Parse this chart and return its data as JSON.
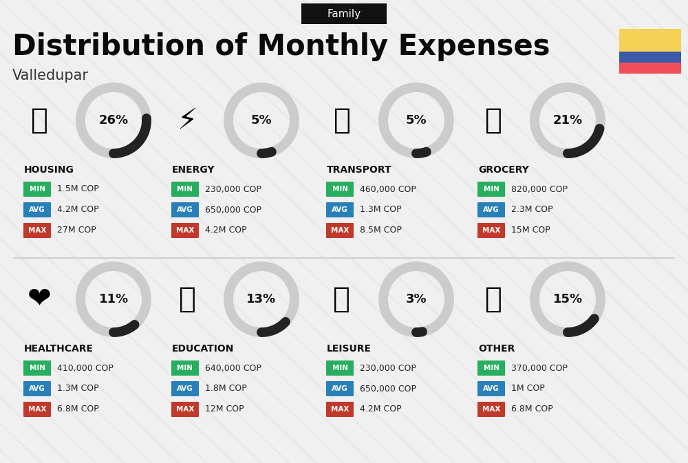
{
  "title": "Distribution of Monthly Expenses",
  "subtitle": "Valledupar",
  "tag": "Family",
  "background_color": "#f0f0f0",
  "categories": [
    {
      "name": "HOUSING",
      "percent": 26,
      "min": "1.5M COP",
      "avg": "4.2M COP",
      "max": "27M COP",
      "row": 0,
      "col": 0
    },
    {
      "name": "ENERGY",
      "percent": 5,
      "min": "230,000 COP",
      "avg": "650,000 COP",
      "max": "4.2M COP",
      "row": 0,
      "col": 1
    },
    {
      "name": "TRANSPORT",
      "percent": 5,
      "min": "460,000 COP",
      "avg": "1.3M COP",
      "max": "8.5M COP",
      "row": 0,
      "col": 2
    },
    {
      "name": "GROCERY",
      "percent": 21,
      "min": "820,000 COP",
      "avg": "2.3M COP",
      "max": "15M COP",
      "row": 0,
      "col": 3
    },
    {
      "name": "HEALTHCARE",
      "percent": 11,
      "min": "410,000 COP",
      "avg": "1.3M COP",
      "max": "6.8M COP",
      "row": 1,
      "col": 0
    },
    {
      "name": "EDUCATION",
      "percent": 13,
      "min": "640,000 COP",
      "avg": "1.8M COP",
      "max": "12M COP",
      "row": 1,
      "col": 1
    },
    {
      "name": "LEISURE",
      "percent": 3,
      "min": "230,000 COP",
      "avg": "650,000 COP",
      "max": "4.2M COP",
      "row": 1,
      "col": 2
    },
    {
      "name": "OTHER",
      "percent": 15,
      "min": "370,000 COP",
      "avg": "1M COP",
      "max": "6.8M COP",
      "row": 1,
      "col": 3
    }
  ],
  "min_color": "#27ae60",
  "avg_color": "#2980b9",
  "max_color": "#c0392b",
  "arc_color": "#222222",
  "arc_bg_color": "#cccccc",
  "percent_color": "#111111",
  "name_color": "#111111",
  "colombia_yellow": "#f5d155",
  "colombia_blue": "#3d5aa8",
  "colombia_red": "#f04f5a",
  "tag_bg": "#111111",
  "tag_text": "#ffffff",
  "divider_color": "#d0d0d0",
  "value_color": "#222222"
}
